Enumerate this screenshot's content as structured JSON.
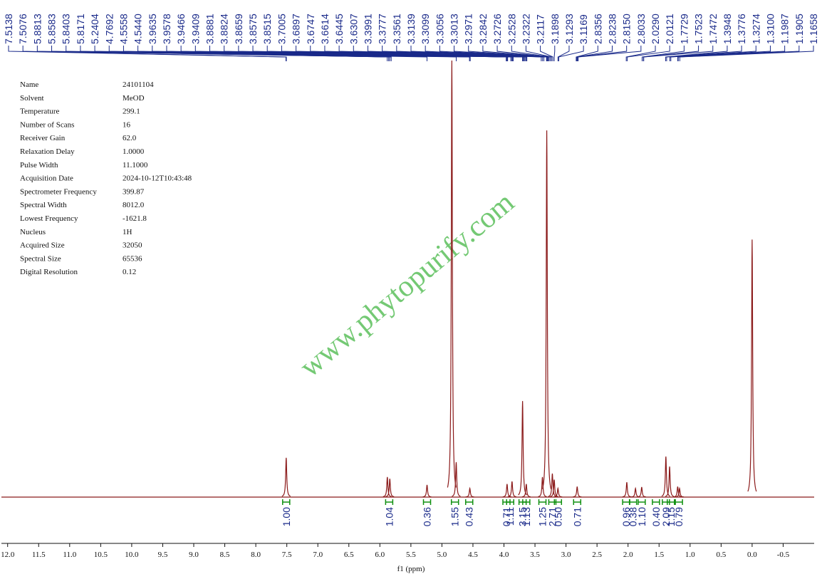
{
  "chart_data": {
    "type": "spectrum",
    "xlabel": "f1 (ppm)",
    "xlim": [
      12.1,
      -1.0
    ],
    "ylim": [
      0,
      100
    ],
    "xticks": [
      {
        "value": 12.0,
        "label": "12.0"
      },
      11.5,
      {
        "value": 11.0,
        "label": "11.0"
      },
      10.5,
      {
        "value": 10.0,
        "label": "10.0"
      },
      9.5,
      {
        "value": 9.0,
        "label": "9.0"
      },
      8.5,
      {
        "value": 8.0,
        "label": "8.0"
      },
      7.5,
      {
        "value": 7.0,
        "label": "7.0"
      },
      6.5,
      {
        "value": 6.0,
        "label": "6.0"
      },
      5.5,
      {
        "value": 5.0,
        "label": "5.0"
      },
      4.5,
      {
        "value": 4.0,
        "label": "4.0"
      },
      3.5,
      {
        "value": 3.0,
        "label": "3.0"
      },
      2.5,
      {
        "value": 2.0,
        "label": "2.0"
      },
      1.5,
      {
        "value": 1.0,
        "label": "1.0"
      },
      0.5,
      {
        "value": 0.0,
        "label": "0.0"
      },
      -0.5
    ],
    "color": "#8b1a1a",
    "x": [
      7.51,
      5.88,
      5.84,
      5.24,
      4.84,
      4.77,
      4.55,
      3.95,
      3.87,
      3.7,
      3.64,
      3.38,
      3.31,
      3.22,
      3.19,
      3.13,
      2.82,
      2.02,
      1.88,
      1.78,
      1.39,
      1.33,
      1.2,
      1.17,
      0.0
    ],
    "values": [
      9,
      4.6,
      4.2,
      2.8,
      100,
      8,
      2,
      3,
      3.6,
      22,
      3,
      4.6,
      84,
      5.4,
      4,
      2,
      2.4,
      3.4,
      2,
      2.3,
      9.3,
      7,
      2.4,
      2,
      59
    ],
    "peak_labels": [
      7.5138,
      7.5076,
      5.8813,
      5.8583,
      5.8403,
      5.8171,
      5.2404,
      4.7692,
      4.5558,
      4.544,
      3.9635,
      3.9578,
      3.9466,
      3.9409,
      3.8881,
      3.8824,
      3.8659,
      3.8575,
      3.8515,
      3.7005,
      3.6897,
      3.6747,
      3.6614,
      3.6445,
      3.6307,
      3.3991,
      3.3777,
      3.3561,
      3.3139,
      3.3099,
      3.3056,
      3.3013,
      3.2971,
      3.2842,
      3.2726,
      3.2528,
      3.2322,
      3.2117,
      3.1898,
      3.1293,
      3.1169,
      2.8356,
      2.8238,
      2.815,
      2.8033,
      2.029,
      2.0121,
      1.7729,
      1.7523,
      1.7472,
      1.3948,
      1.3776,
      1.3274,
      {
        "value": 1.31,
        "label": "1.3100"
      },
      1.1987,
      1.1905,
      1.1658
    ],
    "peak_label_texts": [
      "7.5138",
      "7.5076",
      "5.8813",
      "5.8583",
      "5.8403",
      "5.8171",
      "5.2404",
      "4.7692",
      "4.5558",
      "4.5440",
      "3.9635",
      "3.9578",
      "3.9466",
      "3.9409",
      "3.8881",
      "3.8824",
      "3.8659",
      "3.8575",
      "3.8515",
      "3.7005",
      "3.6897",
      "3.6747",
      "3.6614",
      "3.6445",
      "3.6307",
      "3.3991",
      "3.3777",
      "3.3561",
      "3.3139",
      "3.3099",
      "3.3056",
      "3.3013",
      "3.2971",
      "3.2842",
      "3.2726",
      "3.2528",
      "3.2322",
      "3.2117",
      "3.1898",
      "3.1293",
      "3.1169",
      "2.8356",
      "2.8238",
      "2.8150",
      "2.8033",
      "2.0290",
      "2.0121",
      "1.7729",
      "1.7523",
      "1.7472",
      "1.3948",
      "1.3776",
      "1.3274",
      "1.3100",
      "1.1987",
      "1.1905",
      "1.1658"
    ],
    "integrals": {
      "x": [
        7.51,
        5.85,
        5.24,
        4.79,
        4.56,
        3.96,
        3.9,
        3.7,
        3.64,
        3.38,
        3.22,
        3.13,
        2.82,
        2.03,
        1.92,
        1.78,
        1.55,
        1.39,
        1.31,
        1.18
      ],
      "values": [
        1,
        1.04,
        0.36,
        1.55,
        0.43,
        0.71,
        1.11,
        3.15,
        1.13,
        1.25,
        2.71,
        0.5,
        0.71,
        0.96,
        0.38,
        1.1,
        0.4,
        2.09,
        1.15,
        0.79
      ],
      "value_labels": [
        "1.00",
        "1.04",
        "0.36",
        "1.55",
        "0.43",
        "0.71",
        "1.11",
        "3.15",
        "1.13",
        "1.25",
        "2.71",
        "0.50",
        "0.71",
        "0.96",
        "0.38",
        "1.10",
        "0.40",
        "2.09",
        "1.15",
        "0.79"
      ]
    }
  },
  "parameters": [
    [
      "Name",
      "24101104"
    ],
    [
      "Solvent",
      "MeOD"
    ],
    [
      "Temperature",
      "299.1"
    ],
    [
      "Number of Scans",
      "16"
    ],
    [
      "Receiver Gain",
      "62.0"
    ],
    [
      "Relaxation Delay",
      "1.0000"
    ],
    [
      "Pulse Width",
      "11.1000"
    ],
    [
      "Acquisition Date",
      "2024-10-12T10:43:48"
    ],
    [
      "Spectrometer Frequency",
      "399.87"
    ],
    [
      "Spectral Width",
      "8012.0"
    ],
    [
      "Lowest Frequency",
      "-1621.8"
    ],
    [
      "Nucleus",
      "1H"
    ],
    [
      "Acquired Size",
      "32050"
    ],
    [
      "Spectral Size",
      "65536"
    ],
    [
      "Digital Resolution",
      "0.12"
    ]
  ],
  "watermark": "www.phytopurify.com"
}
